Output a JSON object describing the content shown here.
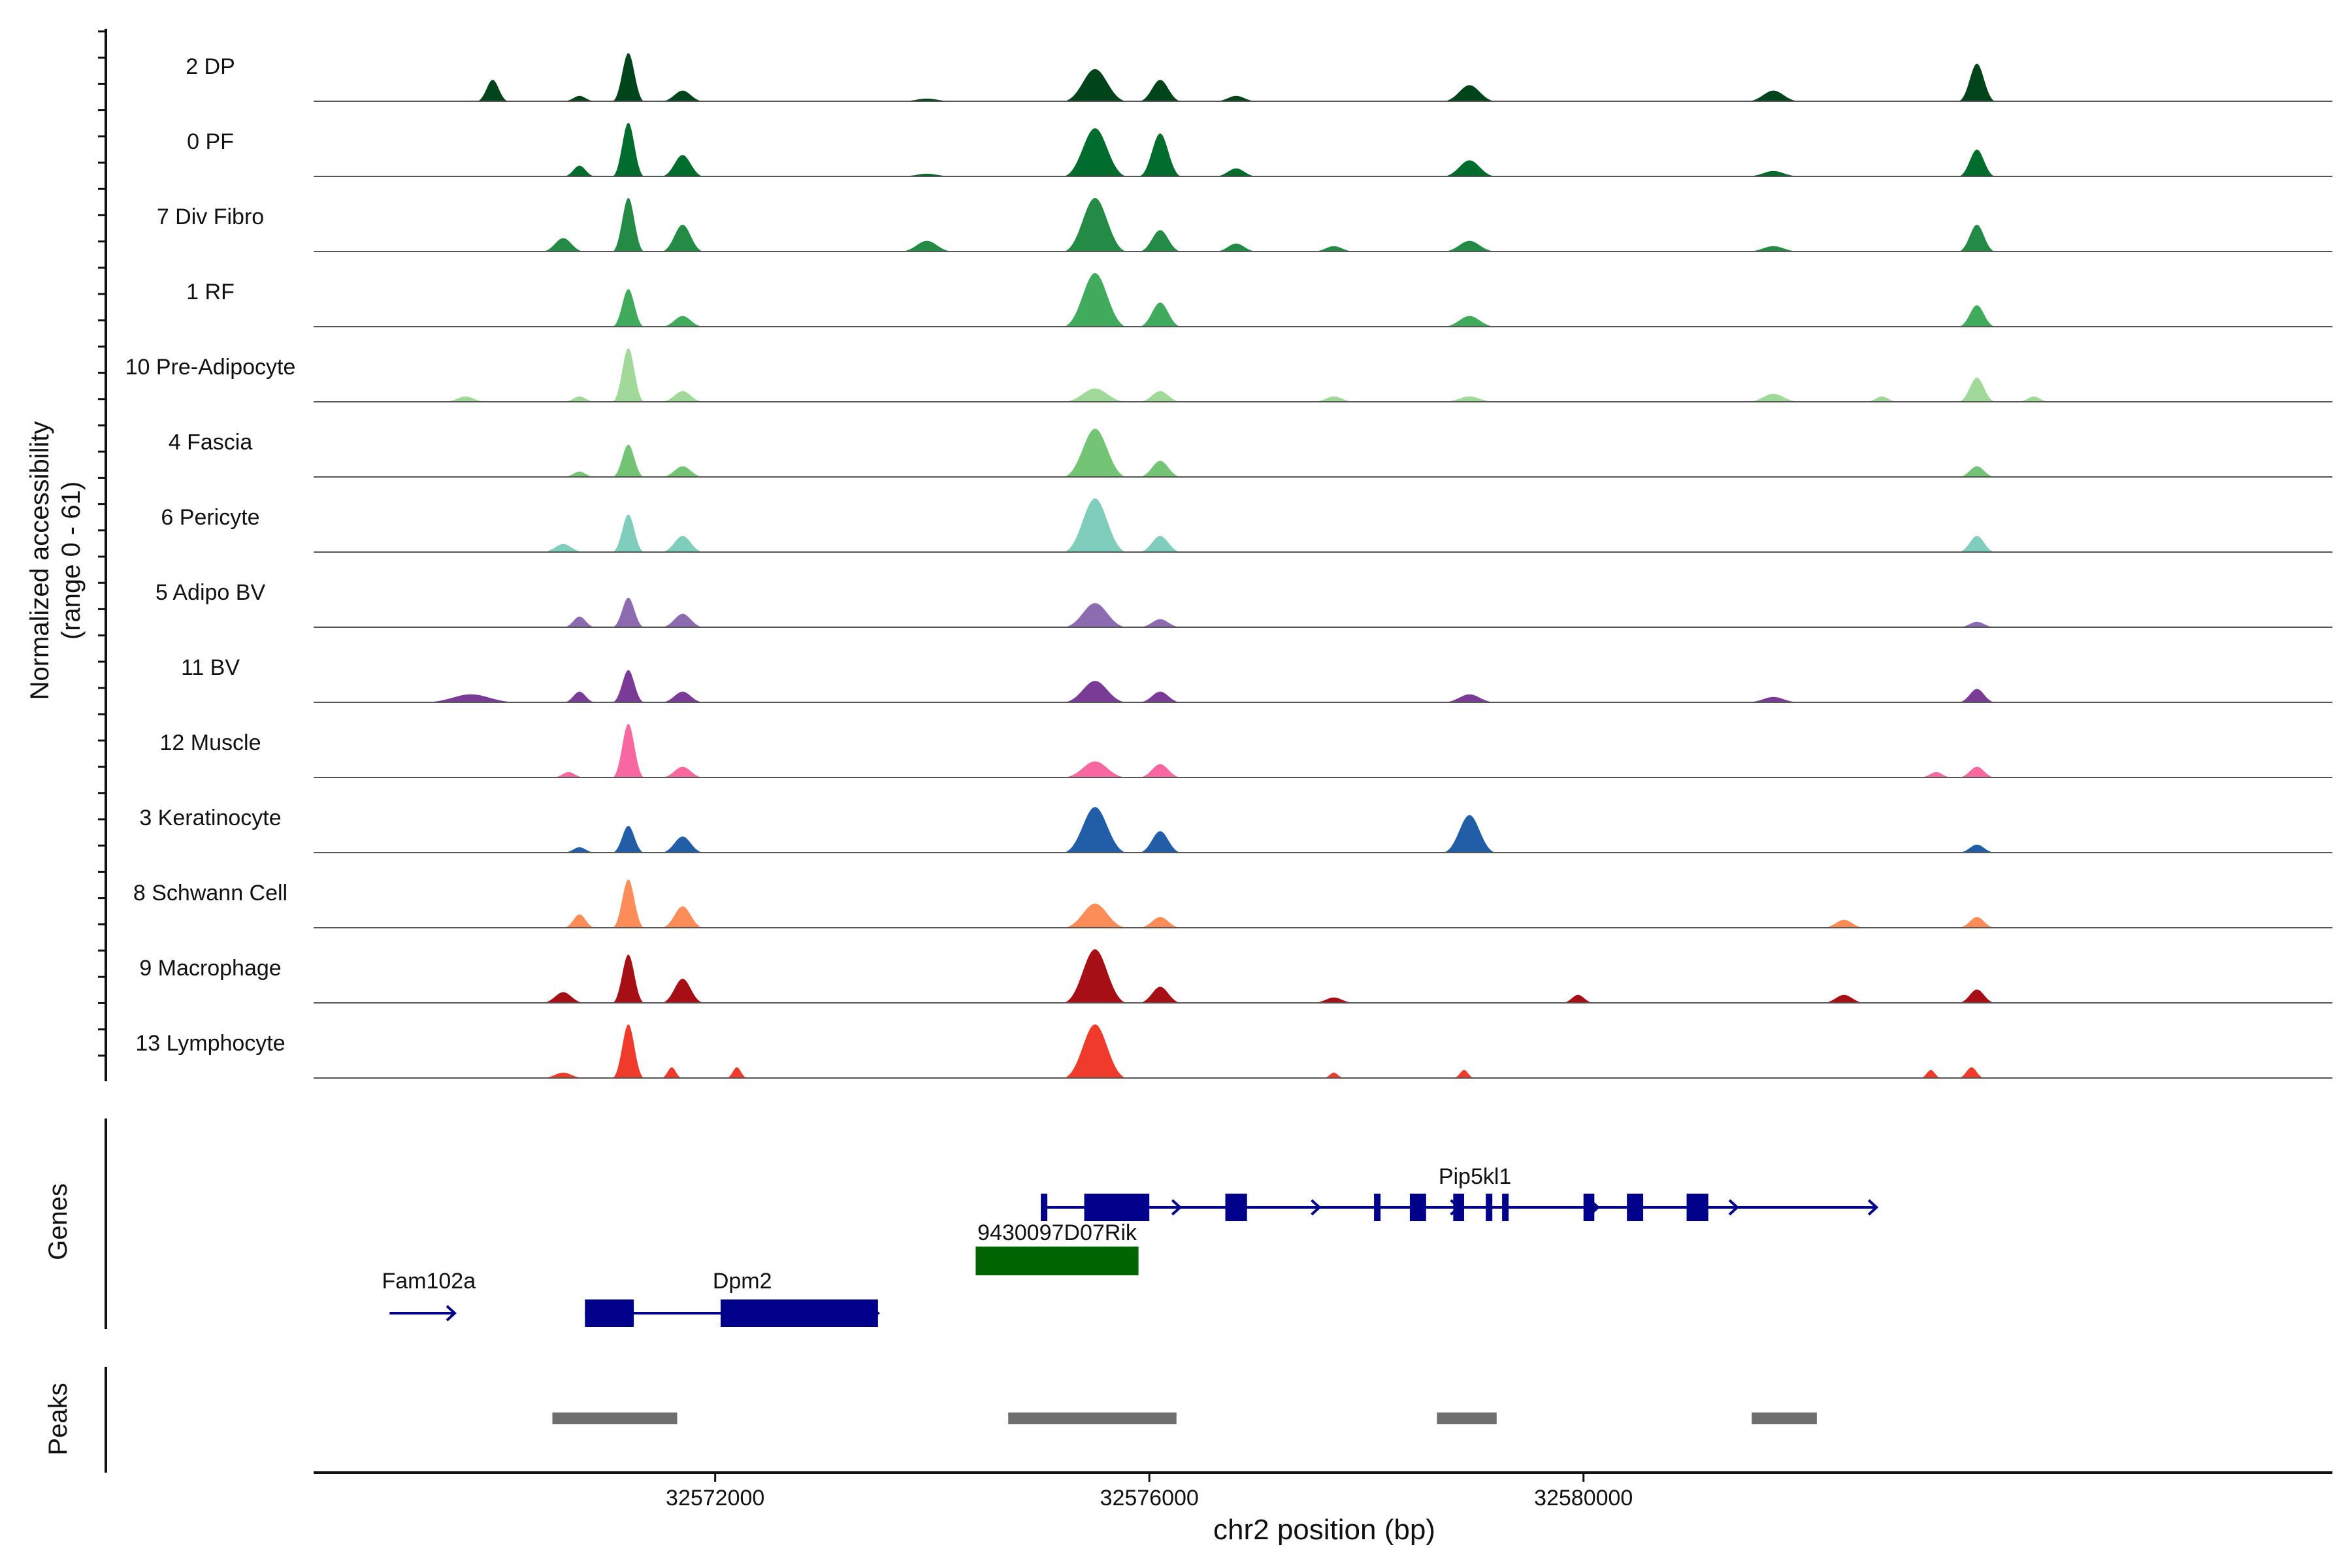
{
  "chart_data": {
    "type": "area",
    "title": "",
    "xlabel": "chr2 position (bp)",
    "x_range": [
      32568300,
      32586900
    ],
    "x_ticks": [
      32572000,
      32576000,
      32580000
    ],
    "x_tick_labels": [
      "32572000",
      "32576000",
      "32580000"
    ],
    "ylabel_coverage": "Normalized accessibility\n(range 0 - 61)",
    "y_range": [
      0,
      61
    ],
    "ylabel_genes": "Genes",
    "ylabel_peaks": "Peaks",
    "tracks": [
      {
        "name": "2 DP",
        "color": "#00441b",
        "peaks": [
          [
            32569800,
            32570100,
            0.4
          ],
          [
            32570600,
            32570900,
            0.1
          ],
          [
            32571050,
            32571350,
            0.9
          ],
          [
            32571500,
            32571900,
            0.2
          ],
          [
            32573700,
            32574200,
            0.05
          ],
          [
            32575200,
            32575800,
            0.6
          ],
          [
            32575900,
            32576300,
            0.4
          ],
          [
            32576600,
            32577000,
            0.1
          ],
          [
            32578700,
            32579200,
            0.3
          ],
          [
            32581500,
            32582000,
            0.2
          ],
          [
            32583450,
            32583800,
            0.7
          ]
        ]
      },
      {
        "name": "0 PF",
        "color": "#006d2c",
        "peaks": [
          [
            32570600,
            32570900,
            0.2
          ],
          [
            32571050,
            32571350,
            1.0
          ],
          [
            32571500,
            32571900,
            0.4
          ],
          [
            32573700,
            32574200,
            0.05
          ],
          [
            32575200,
            32575800,
            0.9
          ],
          [
            32575900,
            32576300,
            0.8
          ],
          [
            32576600,
            32577000,
            0.15
          ],
          [
            32578700,
            32579200,
            0.3
          ],
          [
            32581500,
            32582000,
            0.1
          ],
          [
            32583450,
            32583800,
            0.5
          ]
        ]
      },
      {
        "name": "7 Div Fibro",
        "color": "#238b45",
        "peaks": [
          [
            32570400,
            32570800,
            0.25
          ],
          [
            32571050,
            32571350,
            1.0
          ],
          [
            32571500,
            32571900,
            0.5
          ],
          [
            32573700,
            32574200,
            0.2
          ],
          [
            32575200,
            32575800,
            1.0
          ],
          [
            32575900,
            32576300,
            0.4
          ],
          [
            32576600,
            32577000,
            0.15
          ],
          [
            32577500,
            32577900,
            0.1
          ],
          [
            32578700,
            32579200,
            0.2
          ],
          [
            32581500,
            32582000,
            0.1
          ],
          [
            32583450,
            32583800,
            0.5
          ]
        ]
      },
      {
        "name": "1 RF",
        "color": "#41ab5d",
        "peaks": [
          [
            32571050,
            32571350,
            0.7
          ],
          [
            32571500,
            32571900,
            0.2
          ],
          [
            32575200,
            32575800,
            1.0
          ],
          [
            32575900,
            32576300,
            0.45
          ],
          [
            32578700,
            32579200,
            0.2
          ],
          [
            32583450,
            32583800,
            0.4
          ]
        ]
      },
      {
        "name": "10 Pre-Adipocyte",
        "color": "#a1d99b",
        "peaks": [
          [
            32569500,
            32569900,
            0.1
          ],
          [
            32570600,
            32570900,
            0.1
          ],
          [
            32571050,
            32571350,
            1.0
          ],
          [
            32571500,
            32571900,
            0.2
          ],
          [
            32575200,
            32575800,
            0.25
          ],
          [
            32575900,
            32576300,
            0.2
          ],
          [
            32577500,
            32577900,
            0.1
          ],
          [
            32578700,
            32579200,
            0.1
          ],
          [
            32581500,
            32582000,
            0.15
          ],
          [
            32582600,
            32582900,
            0.1
          ],
          [
            32583450,
            32583800,
            0.45
          ],
          [
            32584000,
            32584300,
            0.1
          ]
        ]
      },
      {
        "name": "4 Fascia",
        "color": "#74c476",
        "peaks": [
          [
            32570600,
            32570900,
            0.1
          ],
          [
            32571050,
            32571350,
            0.6
          ],
          [
            32571500,
            32571900,
            0.2
          ],
          [
            32575200,
            32575800,
            0.9
          ],
          [
            32575900,
            32576300,
            0.3
          ],
          [
            32583450,
            32583800,
            0.2
          ]
        ]
      },
      {
        "name": "6 Pericyte",
        "color": "#7fcdbb",
        "peaks": [
          [
            32570400,
            32570800,
            0.15
          ],
          [
            32571050,
            32571350,
            0.7
          ],
          [
            32571500,
            32571900,
            0.3
          ],
          [
            32575200,
            32575800,
            1.0
          ],
          [
            32575900,
            32576300,
            0.3
          ],
          [
            32583450,
            32583800,
            0.3
          ]
        ]
      },
      {
        "name": "5 Adipo BV",
        "color": "#8c6bb1",
        "peaks": [
          [
            32570600,
            32570900,
            0.2
          ],
          [
            32571050,
            32571350,
            0.55
          ],
          [
            32571500,
            32571900,
            0.25
          ],
          [
            32575200,
            32575800,
            0.45
          ],
          [
            32575900,
            32576300,
            0.15
          ],
          [
            32583450,
            32583800,
            0.1
          ]
        ]
      },
      {
        "name": "11 BV",
        "color": "#7a3b96",
        "peaks": [
          [
            32569300,
            32570200,
            0.15
          ],
          [
            32570600,
            32570900,
            0.2
          ],
          [
            32571050,
            32571350,
            0.6
          ],
          [
            32571500,
            32571900,
            0.2
          ],
          [
            32575200,
            32575800,
            0.4
          ],
          [
            32575900,
            32576300,
            0.2
          ],
          [
            32578700,
            32579200,
            0.15
          ],
          [
            32581500,
            32582000,
            0.1
          ],
          [
            32583450,
            32583800,
            0.25
          ]
        ]
      },
      {
        "name": "12 Muscle",
        "color": "#f768a1",
        "peaks": [
          [
            32570500,
            32570800,
            0.1
          ],
          [
            32571050,
            32571350,
            1.0
          ],
          [
            32571500,
            32571900,
            0.2
          ],
          [
            32575200,
            32575800,
            0.3
          ],
          [
            32575900,
            32576300,
            0.25
          ],
          [
            32583100,
            32583400,
            0.1
          ],
          [
            32583450,
            32583800,
            0.2
          ]
        ]
      },
      {
        "name": "3 Keratinocyte",
        "color": "#225ea8",
        "peaks": [
          [
            32570600,
            32570900,
            0.1
          ],
          [
            32571050,
            32571350,
            0.5
          ],
          [
            32571500,
            32571900,
            0.3
          ],
          [
            32575200,
            32575800,
            0.85
          ],
          [
            32575900,
            32576300,
            0.4
          ],
          [
            32578700,
            32579200,
            0.7
          ],
          [
            32583450,
            32583800,
            0.15
          ]
        ]
      },
      {
        "name": "8 Schwann Cell",
        "color": "#fc8d59",
        "peaks": [
          [
            32570600,
            32570900,
            0.25
          ],
          [
            32571050,
            32571350,
            0.9
          ],
          [
            32571500,
            32571900,
            0.4
          ],
          [
            32575200,
            32575800,
            0.45
          ],
          [
            32575900,
            32576300,
            0.2
          ],
          [
            32582200,
            32582600,
            0.15
          ],
          [
            32583450,
            32583800,
            0.2
          ]
        ]
      },
      {
        "name": "9 Macrophage",
        "color": "#a50f15",
        "peaks": [
          [
            32570400,
            32570800,
            0.2
          ],
          [
            32571050,
            32571350,
            0.9
          ],
          [
            32571500,
            32571900,
            0.45
          ],
          [
            32575200,
            32575800,
            1.0
          ],
          [
            32575900,
            32576300,
            0.3
          ],
          [
            32577500,
            32577900,
            0.1
          ],
          [
            32579800,
            32580100,
            0.15
          ],
          [
            32582200,
            32582600,
            0.15
          ],
          [
            32583450,
            32583800,
            0.25
          ]
        ]
      },
      {
        "name": "13 Lymphocyte",
        "color": "#ef3b2c",
        "peaks": [
          [
            32570400,
            32570800,
            0.1
          ],
          [
            32571050,
            32571350,
            1.0
          ],
          [
            32571500,
            32571700,
            0.2
          ],
          [
            32572100,
            32572300,
            0.2
          ],
          [
            32575200,
            32575800,
            1.0
          ],
          [
            32577600,
            32577800,
            0.1
          ],
          [
            32578800,
            32579000,
            0.15
          ],
          [
            32583100,
            32583300,
            0.15
          ],
          [
            32583450,
            32583700,
            0.2
          ]
        ]
      }
    ],
    "genes": [
      {
        "name": "Fam102a",
        "strand": "+",
        "row": 2,
        "start": 32569000,
        "end": 32569600,
        "exons": []
      },
      {
        "name": "Dpm2",
        "strand": "+",
        "row": 2,
        "start": 32570800,
        "end": 32573500,
        "exons": [
          [
            32570800,
            32571250
          ],
          [
            32572050,
            32573500
          ]
        ]
      },
      {
        "name": "9430097D07Rik",
        "strand": "",
        "row": 1,
        "start": 32574400,
        "end": 32575900,
        "exons": [
          [
            32574400,
            32575900
          ]
        ]
      },
      {
        "name": "Pip5kl1",
        "strand": "+",
        "row": 0,
        "start": 32575000,
        "end": 32582700,
        "exons": [
          [
            32575000,
            32575050
          ],
          [
            32575400,
            32576000
          ],
          [
            32576700,
            32576900
          ],
          [
            32578070,
            32578120
          ],
          [
            32578400,
            32578550
          ],
          [
            32578800,
            32578900
          ],
          [
            32579100,
            32579150
          ],
          [
            32579250,
            32579300
          ],
          [
            32580000,
            32580100
          ],
          [
            32580400,
            32580550
          ],
          [
            32580950,
            32581150
          ]
        ]
      }
    ],
    "peaks": [
      [
        32570500,
        32571650
      ],
      [
        32574700,
        32576250
      ],
      [
        32578650,
        32579200
      ],
      [
        32581550,
        32582150
      ]
    ]
  }
}
